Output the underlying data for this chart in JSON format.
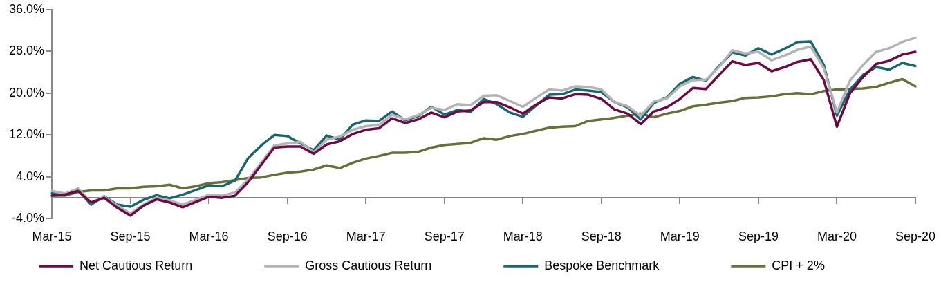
{
  "chart_data": {
    "type": "line",
    "categories": [
      "Mar-15",
      null,
      null,
      null,
      null,
      null,
      "Sep-15",
      null,
      null,
      null,
      null,
      null,
      "Mar-16",
      null,
      null,
      null,
      null,
      null,
      "Sep-16",
      null,
      null,
      null,
      null,
      null,
      "Mar-17",
      null,
      null,
      null,
      null,
      null,
      "Sep-17",
      null,
      null,
      null,
      null,
      null,
      "Mar-18",
      null,
      null,
      null,
      null,
      null,
      "Sep-18",
      null,
      null,
      null,
      null,
      null,
      "Mar-19",
      null,
      null,
      null,
      null,
      null,
      "Sep-19",
      null,
      null,
      null,
      null,
      null,
      "Mar-20",
      null,
      null,
      null,
      null,
      null,
      "Sep-20"
    ],
    "series": [
      {
        "name": "Net Cautious Return",
        "color": "#6d0a45",
        "values": [
          0.4,
          0.6,
          1.3,
          -0.9,
          0.0,
          -1.9,
          -3.4,
          -1.5,
          -0.3,
          -0.9,
          -1.8,
          -0.8,
          0.2,
          0.0,
          0.4,
          3.0,
          6.3,
          9.6,
          9.8,
          9.8,
          8.4,
          10.2,
          10.8,
          12.2,
          13.0,
          13.3,
          15.2,
          14.3,
          15.0,
          16.3,
          15.4,
          16.5,
          16.7,
          18.3,
          18.3,
          17.3,
          16.1,
          17.8,
          19.2,
          19.0,
          19.8,
          19.7,
          18.9,
          16.9,
          16.1,
          14.1,
          16.5,
          17.3,
          18.9,
          21.0,
          20.8,
          23.5,
          26.1,
          25.4,
          25.8,
          24.2,
          25.0,
          26.0,
          26.5,
          22.5,
          13.6,
          20.0,
          23.1,
          25.6,
          26.2,
          27.4,
          27.9
        ]
      },
      {
        "name": "Gross Cautious Return",
        "color": "#b3b3b3",
        "values": [
          1.3,
          0.8,
          1.8,
          -0.9,
          0.2,
          -1.5,
          -3.0,
          -1.3,
          0.0,
          -0.5,
          -1.3,
          -0.4,
          0.6,
          0.4,
          1.0,
          3.5,
          6.7,
          10.0,
          10.4,
          10.7,
          8.7,
          11.1,
          11.7,
          13.0,
          13.7,
          13.9,
          15.9,
          15.0,
          15.8,
          17.2,
          16.8,
          17.9,
          17.7,
          19.5,
          19.6,
          18.5,
          17.4,
          19.1,
          20.7,
          20.5,
          21.3,
          21.2,
          20.7,
          18.3,
          17.5,
          15.7,
          18.4,
          19.0,
          21.3,
          22.5,
          22.6,
          25.0,
          28.2,
          27.6,
          27.9,
          26.3,
          27.2,
          28.3,
          28.9,
          24.8,
          16.3,
          22.4,
          25.4,
          27.9,
          28.6,
          29.8,
          30.6
        ]
      },
      {
        "name": "Bespoke Benchmark",
        "color": "#1a6670",
        "values": [
          0.9,
          0.6,
          1.5,
          -1.3,
          0.3,
          -1.3,
          -1.7,
          -0.4,
          0.5,
          -0.1,
          0.6,
          1.5,
          2.4,
          2.2,
          3.3,
          7.6,
          10.0,
          12.0,
          11.8,
          10.4,
          9.1,
          11.9,
          11.1,
          14.0,
          14.8,
          14.7,
          16.5,
          14.8,
          15.6,
          17.4,
          15.9,
          16.8,
          16.4,
          18.9,
          17.9,
          16.3,
          15.5,
          17.6,
          19.7,
          19.8,
          20.7,
          20.5,
          20.2,
          18.3,
          17.3,
          15.0,
          18.1,
          19.2,
          21.8,
          23.1,
          22.4,
          25.2,
          27.8,
          27.2,
          28.6,
          27.4,
          28.5,
          29.8,
          29.9,
          25.4,
          15.7,
          20.7,
          23.5,
          25.0,
          24.5,
          25.8,
          25.2
        ]
      },
      {
        "name": "CPI + 2%",
        "color": "#66703a",
        "values": [
          0.4,
          0.4,
          1.1,
          1.4,
          1.4,
          1.8,
          1.8,
          2.1,
          2.2,
          2.5,
          1.8,
          2.2,
          2.8,
          3.0,
          3.4,
          3.8,
          3.9,
          4.4,
          4.8,
          5.0,
          5.4,
          6.2,
          5.7,
          6.7,
          7.5,
          8.0,
          8.6,
          8.6,
          8.8,
          9.6,
          10.1,
          10.3,
          10.5,
          11.4,
          11.1,
          11.8,
          12.2,
          12.8,
          13.4,
          13.6,
          13.7,
          14.7,
          15.0,
          15.3,
          15.7,
          16.1,
          15.4,
          16.1,
          16.6,
          17.5,
          17.8,
          18.2,
          18.5,
          19.1,
          19.2,
          19.4,
          19.8,
          20.0,
          19.8,
          20.4,
          20.7,
          20.8,
          20.9,
          21.2,
          22.0,
          22.7,
          21.3
        ]
      }
    ],
    "ylim": [
      -4,
      36
    ],
    "yticks": [
      {
        "value": -4,
        "label": "-4.0%"
      },
      {
        "value": 4,
        "label": "4.0%"
      },
      {
        "value": 12,
        "label": "12.0%"
      },
      {
        "value": 20,
        "label": "20.0%"
      },
      {
        "value": 28,
        "label": "28.0%"
      },
      {
        "value": 36,
        "label": "36.0%"
      }
    ],
    "grid": false,
    "legend": "bottom",
    "marker": "none",
    "line_style": "solid"
  }
}
